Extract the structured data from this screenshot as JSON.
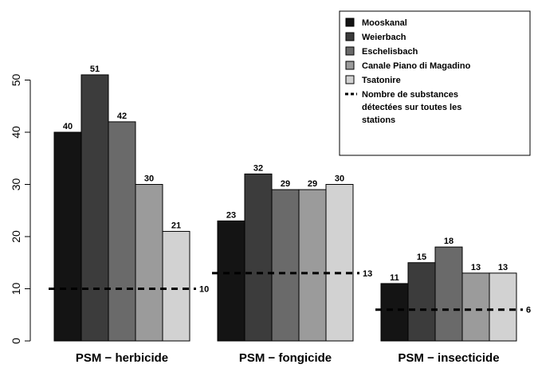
{
  "chart_data": {
    "type": "bar",
    "categories": [
      "PSM − herbicide",
      "PSM − fongicide",
      "PSM − insecticide"
    ],
    "series": [
      {
        "name": "Mooskanal",
        "color": "#141414",
        "values": [
          40,
          23,
          11
        ]
      },
      {
        "name": "Weierbach",
        "color": "#3c3c3c",
        "values": [
          51,
          32,
          15
        ]
      },
      {
        "name": "Eschelisbach",
        "color": "#6a6a6a",
        "values": [
          42,
          29,
          18
        ]
      },
      {
        "name": "Canale Piano di Magadino",
        "color": "#9b9b9b",
        "values": [
          30,
          29,
          13
        ]
      },
      {
        "name": "Tsatonire",
        "color": "#d2d2d2",
        "values": [
          21,
          30,
          13
        ]
      }
    ],
    "reference_lines": {
      "name": [
        "Nombre de substances",
        "détectées sur toutes les",
        "stations"
      ],
      "values": [
        10,
        13,
        6
      ]
    },
    "yticks": [
      0,
      10,
      20,
      30,
      40,
      50
    ],
    "ylim": [
      0,
      56
    ],
    "xlabel": "",
    "ylabel": "",
    "title": "",
    "legend_position": "top-right",
    "grid": false
  }
}
